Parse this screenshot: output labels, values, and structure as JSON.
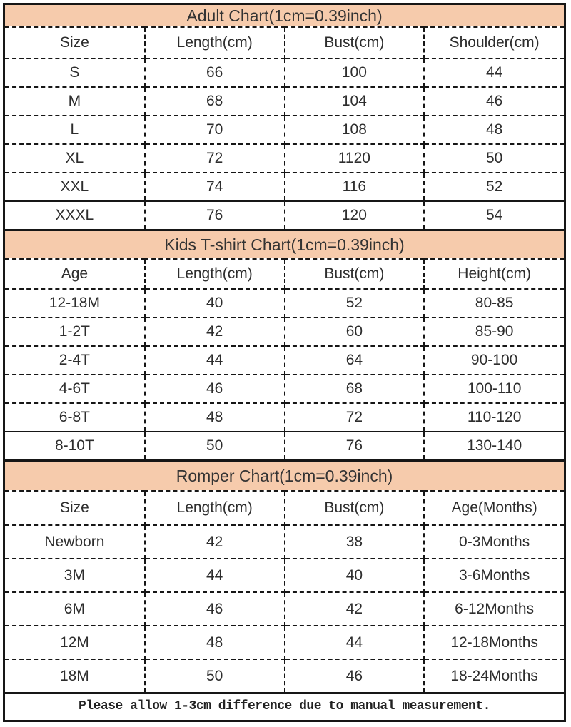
{
  "chart_data": [
    {
      "type": "table",
      "title": "Adult Chart(1cm=0.39inch)",
      "columns": [
        "Size",
        "Length(cm)",
        "Bust(cm)",
        "Shoulder(cm)"
      ],
      "rows": [
        [
          "S",
          "66",
          "100",
          "44"
        ],
        [
          "M",
          "68",
          "104",
          "46"
        ],
        [
          "L",
          "70",
          "108",
          "48"
        ],
        [
          "XL",
          "72",
          "1120",
          "50"
        ],
        [
          "XXL",
          "74",
          "116",
          "52"
        ],
        [
          "XXXL",
          "76",
          "120",
          "54"
        ]
      ]
    },
    {
      "type": "table",
      "title": "Kids T-shirt Chart(1cm=0.39inch)",
      "columns": [
        "Age",
        "Length(cm)",
        "Bust(cm)",
        "Height(cm)"
      ],
      "rows": [
        [
          "12-18M",
          "40",
          "52",
          "80-85"
        ],
        [
          "1-2T",
          "42",
          "60",
          "85-90"
        ],
        [
          "2-4T",
          "44",
          "64",
          "90-100"
        ],
        [
          "4-6T",
          "46",
          "68",
          "100-110"
        ],
        [
          "6-8T",
          "48",
          "72",
          "110-120"
        ],
        [
          "8-10T",
          "50",
          "76",
          "130-140"
        ]
      ]
    },
    {
      "type": "table",
      "title": "Romper Chart(1cm=0.39inch)",
      "columns": [
        "Size",
        "Length(cm)",
        "Bust(cm)",
        "Age(Months)"
      ],
      "rows": [
        [
          "Newborn",
          "42",
          "38",
          "0-3Months"
        ],
        [
          "3M",
          "44",
          "40",
          "3-6Months"
        ],
        [
          "6M",
          "46",
          "42",
          "6-12Months"
        ],
        [
          "12M",
          "48",
          "44",
          "12-18Months"
        ],
        [
          "18M",
          "50",
          "46",
          "18-24Months"
        ]
      ]
    }
  ],
  "footer": {
    "note": "Please allow 1-3cm difference due to manual measurement."
  },
  "colors": {
    "title_band_bg": "#f6cbac",
    "border": "#161616",
    "text": "#2d2d2d",
    "background": "#ffffff"
  }
}
